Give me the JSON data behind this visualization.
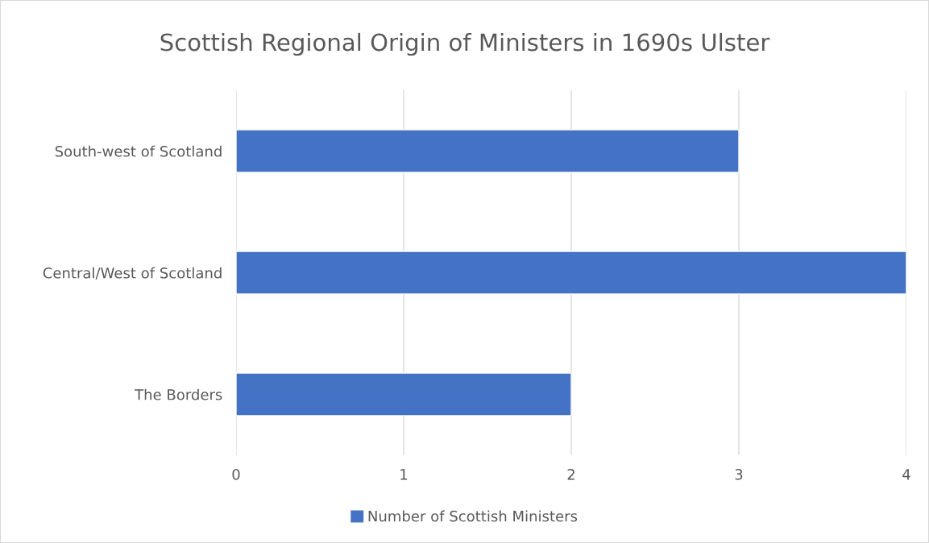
{
  "chart_data": {
    "type": "bar",
    "orientation": "horizontal",
    "title": "Scottish Regional Origin of Ministers in 1690s Ulster",
    "categories": [
      "South-west of Scotland",
      "Central/West of Scotland",
      "The Borders"
    ],
    "series": [
      {
        "name": "Number of Scottish Ministers",
        "color": "#4472c4",
        "values": [
          3,
          4,
          2
        ]
      }
    ],
    "xlim": [
      0,
      4
    ],
    "xticks": [
      0,
      1,
      2,
      3,
      4
    ],
    "grid": "x",
    "legend": "bottom"
  }
}
